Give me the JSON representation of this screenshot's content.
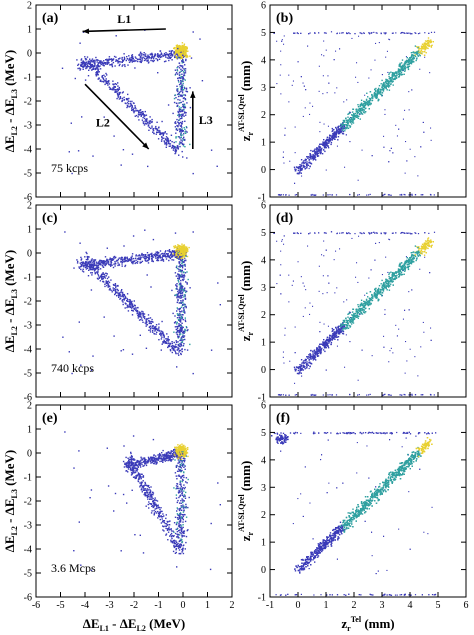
{
  "chart_data": [
    {
      "panel": "(a)",
      "type": "heatmap",
      "rate_label": "75 kcps",
      "xlim": [
        -6,
        2
      ],
      "ylim": [
        -6,
        2
      ],
      "xticks": [
        "-6",
        "-5",
        "-4",
        "-3",
        "-2",
        "-1",
        "0",
        "1",
        "2"
      ],
      "yticks": [
        "-6",
        "-5",
        "-4",
        "-3",
        "-2",
        "-1",
        "0",
        "1",
        "2"
      ],
      "xlabel": "",
      "ylabel": "ΔE_L2 - ΔE_L3 (MeV)",
      "hot_spot": [
        -0.1,
        0.1
      ],
      "annotations": [
        {
          "label": "L1",
          "from": [
            -0.7,
            1.0
          ],
          "to": [
            -4.1,
            0.9
          ]
        },
        {
          "label": "L2",
          "from": [
            -4.0,
            -1.3
          ],
          "to": [
            -1.4,
            -4.0
          ]
        },
        {
          "label": "L3",
          "from": [
            0.4,
            -4.0
          ],
          "to": [
            0.4,
            -1.6
          ]
        }
      ]
    },
    {
      "panel": "(b)",
      "type": "heatmap",
      "xlim": [
        -1,
        6
      ],
      "ylim": [
        -1,
        6
      ],
      "xticks": [
        "-1",
        "0",
        "1",
        "2",
        "3",
        "4",
        "5",
        "6"
      ],
      "yticks": [
        "-1",
        "0",
        "1",
        "2",
        "3",
        "4",
        "5",
        "6"
      ],
      "xlabel": "",
      "ylabel": "z_r^AT-SLQrel (mm)",
      "trend": {
        "from": [
          0,
          0
        ],
        "to": [
          4.7,
          4.7
        ]
      },
      "horizontal_band_y": 5.0,
      "bottom_band_y": -0.9
    },
    {
      "panel": "(c)",
      "type": "heatmap",
      "rate_label": "740 kcps",
      "xlim": [
        -6,
        2
      ],
      "ylim": [
        -6,
        2
      ],
      "xticks": [
        "-6",
        "-5",
        "-4",
        "-3",
        "-2",
        "-1",
        "0",
        "1",
        "2"
      ],
      "yticks": [
        "-6",
        "-5",
        "-4",
        "-3",
        "-2",
        "-1",
        "0",
        "1",
        "2"
      ],
      "xlabel": "",
      "ylabel": "ΔE_L2 - ΔE_L3 (MeV)",
      "hot_spot": [
        -0.1,
        0.1
      ]
    },
    {
      "panel": "(d)",
      "type": "heatmap",
      "xlim": [
        -1,
        6
      ],
      "ylim": [
        -1,
        6
      ],
      "xticks": [
        "-1",
        "0",
        "1",
        "2",
        "3",
        "4",
        "5",
        "6"
      ],
      "yticks": [
        "-1",
        "0",
        "1",
        "2",
        "3",
        "4",
        "5",
        "6"
      ],
      "xlabel": "",
      "ylabel": "z_r^AT-SLQrel (mm)",
      "trend": {
        "from": [
          0,
          0
        ],
        "to": [
          4.7,
          4.7
        ]
      },
      "horizontal_band_y": 5.0,
      "bottom_band_y": -0.9
    },
    {
      "panel": "(e)",
      "type": "heatmap",
      "rate_label": "3.6 Mcps",
      "xlim": [
        -6,
        2
      ],
      "ylim": [
        -6,
        2
      ],
      "xticks": [
        "-6",
        "-5",
        "-4",
        "-3",
        "-2",
        "-1",
        "0",
        "1",
        "2"
      ],
      "yticks": [
        "-6",
        "-5",
        "-4",
        "-3",
        "-2",
        "-1",
        "0",
        "1",
        "2"
      ],
      "xlabel": "ΔE_L1 - ΔE_L2 (MeV)",
      "ylabel": "ΔE_L2 - ΔE_L3 (MeV)",
      "hot_spot": [
        -0.1,
        0.1
      ]
    },
    {
      "panel": "(f)",
      "type": "heatmap",
      "xlim": [
        -1,
        6
      ],
      "ylim": [
        -1,
        6
      ],
      "xticks": [
        "-1",
        "0",
        "1",
        "2",
        "3",
        "4",
        "5",
        "6"
      ],
      "yticks": [
        "-1",
        "0",
        "1",
        "2",
        "3",
        "4",
        "5",
        "6"
      ],
      "xlabel": "z_r^Tel (mm)",
      "ylabel": "z_r^AT-SLQrel (mm)",
      "trend": {
        "from": [
          0,
          0
        ],
        "to": [
          4.7,
          4.7
        ]
      },
      "horizontal_band_y": 5.0,
      "bottom_band_y": -0.9,
      "extra_cluster": [
        -0.6,
        4.8
      ]
    }
  ],
  "colors": {
    "low": "#3a3ab8",
    "mid": "#2fa0a0",
    "high": "#e8d030",
    "axis": "#000000"
  }
}
